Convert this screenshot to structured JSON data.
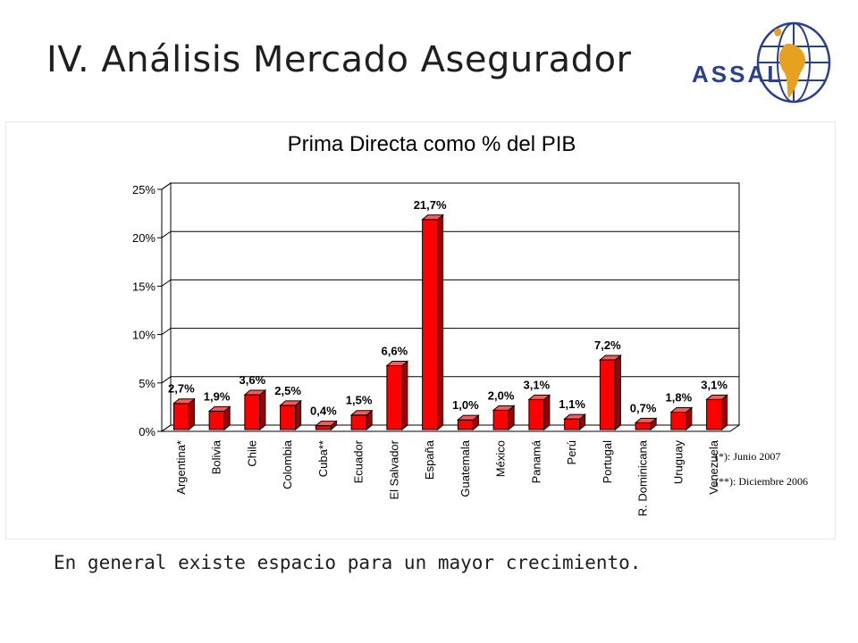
{
  "slide": {
    "title": "IV. Análisis Mercado Asegurador",
    "logo_text": "ASSAL",
    "footer_text": "En general existe espacio para un mayor crecimiento."
  },
  "chart_data": {
    "type": "bar",
    "title": "Prima Directa como % del PIB",
    "xlabel": "",
    "ylabel": "",
    "categories": [
      "Argentina*",
      "Bolivia",
      "Chile",
      "Colombia",
      "Cuba**",
      "Ecuador",
      "El Salvador",
      "España",
      "Guatemala",
      "México",
      "Panamá",
      "Perú",
      "Portugal",
      "R. Dominicana",
      "Uruguay",
      "Venezuela"
    ],
    "values": [
      2.7,
      1.9,
      3.6,
      2.5,
      0.4,
      1.5,
      6.6,
      21.7,
      1.0,
      2.0,
      3.1,
      1.1,
      7.2,
      0.7,
      1.8,
      3.1
    ],
    "value_labels": [
      "2,7%",
      "1,9%",
      "3,6%",
      "2,5%",
      "0,4%",
      "1,5%",
      "6,6%",
      "21,7%",
      "1,0%",
      "2,0%",
      "3,1%",
      "1,1%",
      "7,2%",
      "0,7%",
      "1,8%",
      "3,1%"
    ],
    "ylim": [
      0,
      25
    ],
    "yticks": [
      0,
      5,
      10,
      15,
      20,
      25
    ],
    "ytick_labels": [
      "0%",
      "5%",
      "10%",
      "15%",
      "20%",
      "25%"
    ],
    "grid": true,
    "legend": "none",
    "bar_color": "#ff0000",
    "annotations": [
      "(*): Junio 2007",
      "(**): Diciembre 2006"
    ]
  }
}
